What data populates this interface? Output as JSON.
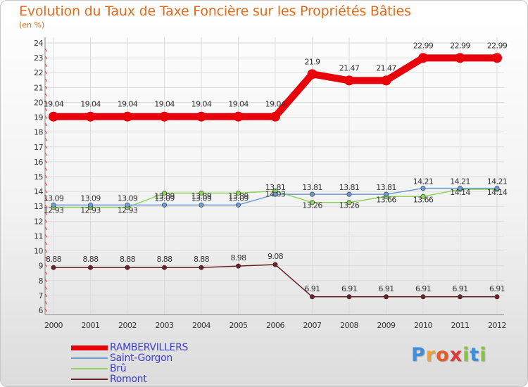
{
  "title": "Evolution du Taux de Taxe Foncière sur les Propriétés Bâties",
  "subtitle": "(en %)",
  "logo": {
    "text": "Proxiti",
    "letters": [
      "P",
      "r",
      "o",
      "x",
      "i",
      "t",
      "i"
    ],
    "colors": [
      "#3e8fd6",
      "#f0a030",
      "#e85a2a",
      "#d93a3a",
      "#8ac43a",
      "#3e8fd6",
      "#8ac43a"
    ]
  },
  "chart_data": {
    "type": "line",
    "title": "Evolution du Taux de Taxe Foncière sur les Propriétés Bâties",
    "ylabel": "(en %)",
    "xlabel": "",
    "categories": [
      "2000",
      "2001",
      "2002",
      "2003",
      "2004",
      "2005",
      "2006",
      "2007",
      "2008",
      "2009",
      "2010",
      "2011",
      "2012"
    ],
    "ylim": [
      6,
      24
    ],
    "yticks": [
      6,
      7,
      8,
      9,
      10,
      11,
      12,
      13,
      14,
      15,
      16,
      17,
      18,
      19,
      20,
      21,
      22,
      23,
      24
    ],
    "grid": true,
    "legend_position": "bottom-left",
    "series": [
      {
        "name": "RAMBERVILLERS",
        "color": "#e8000b",
        "style": "thick",
        "values": [
          19.04,
          19.04,
          19.04,
          19.04,
          19.04,
          19.04,
          19.04,
          21.9,
          21.47,
          21.47,
          22.99,
          22.99,
          22.99
        ],
        "labels": [
          "19.04",
          "19.04",
          "19.04",
          "19.04",
          "19.04",
          "19.04",
          "19.04",
          "21.9",
          "21.47",
          "21.47",
          "22.99",
          "22.99",
          "22.99"
        ]
      },
      {
        "name": "Saint-Gorgon",
        "color": "#6c9bd2",
        "style": "thin",
        "values": [
          13.09,
          13.09,
          13.09,
          13.09,
          13.09,
          13.09,
          13.81,
          13.81,
          13.81,
          13.81,
          14.21,
          14.21,
          14.21
        ],
        "labels": [
          "13.09",
          "13.09",
          "13.09",
          "13.09",
          "13.09",
          "13.09",
          "13.81",
          "13.81",
          "13.81",
          "13.81",
          "14.21",
          "14.21",
          "14.21"
        ]
      },
      {
        "name": "Brû",
        "color": "#8fd45a",
        "style": "thin",
        "values": [
          12.93,
          12.93,
          12.93,
          13.89,
          13.89,
          13.89,
          14.03,
          13.26,
          13.26,
          13.66,
          13.66,
          14.14,
          14.14
        ],
        "labels": [
          "12.93",
          "12.93",
          "12.93",
          "13.89",
          "13.89",
          "13.89",
          "14.03",
          "13.26",
          "13.26",
          "13.66",
          "13.66",
          "14.14",
          "14.14"
        ]
      },
      {
        "name": "Romont",
        "color": "#6b2226",
        "style": "thin",
        "values": [
          8.88,
          8.88,
          8.88,
          8.88,
          8.88,
          8.98,
          9.08,
          6.91,
          6.91,
          6.91,
          6.91,
          6.91,
          6.91
        ],
        "labels": [
          "8.88",
          "8.88",
          "8.88",
          "8.88",
          "8.88",
          "8.98",
          "9.08",
          "6.91",
          "6.91",
          "6.91",
          "6.91",
          "6.91",
          "6.91"
        ]
      }
    ]
  }
}
